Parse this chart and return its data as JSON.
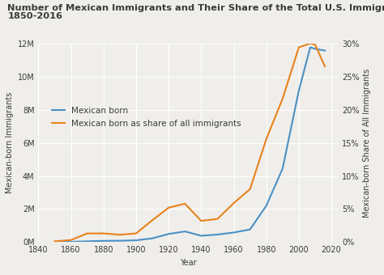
{
  "title_line1": "Number of Mexican Immigrants and Their Share of the Total U.S. Immigrant Population,",
  "title_line2": "1850-2016",
  "xlabel": "Year",
  "ylabel_left": "Mexican-born Immigrants",
  "ylabel_right": "Mexican-born Share of All Immigrants",
  "legend_blue": "Mexican born",
  "legend_orange": "Mexican born as share of all immigrants",
  "color_blue": "#4a90c4",
  "color_orange": "#E8821A",
  "background_color": "#f0eeeb",
  "grid_color": "#ffffff",
  "years": [
    1850,
    1860,
    1870,
    1880,
    1890,
    1900,
    1910,
    1920,
    1930,
    1940,
    1950,
    1960,
    1970,
    1980,
    1990,
    2000,
    2007,
    2010,
    2016
  ],
  "mexican_born": [
    1300,
    9200,
    42400,
    68400,
    77800,
    103400,
    221900,
    486400,
    641500,
    377500,
    451000,
    575900,
    760000,
    2199200,
    4447200,
    9177200,
    11800000,
    11710000,
    11600000
  ],
  "share_pct": [
    0.1,
    0.3,
    1.3,
    1.3,
    1.1,
    1.3,
    3.3,
    5.2,
    5.8,
    3.2,
    3.5,
    5.9,
    8.0,
    15.6,
    21.7,
    29.5,
    30.1,
    29.9,
    26.6
  ],
  "xlim": [
    1840,
    2024
  ],
  "ylim_left": [
    0,
    12000000
  ],
  "ylim_right": [
    0,
    30
  ],
  "xticks": [
    1840,
    1860,
    1880,
    1900,
    1920,
    1940,
    1960,
    1980,
    2000,
    2020
  ],
  "yticks_left": [
    0,
    2000000,
    4000000,
    6000000,
    8000000,
    10000000,
    12000000
  ],
  "yticks_right": [
    0,
    5,
    10,
    15,
    20,
    25,
    30
  ],
  "title_fontsize": 8.2,
  "axis_label_fontsize": 7.0,
  "tick_fontsize": 7.0,
  "legend_fontsize": 7.5,
  "text_color": "#3a3a3a"
}
